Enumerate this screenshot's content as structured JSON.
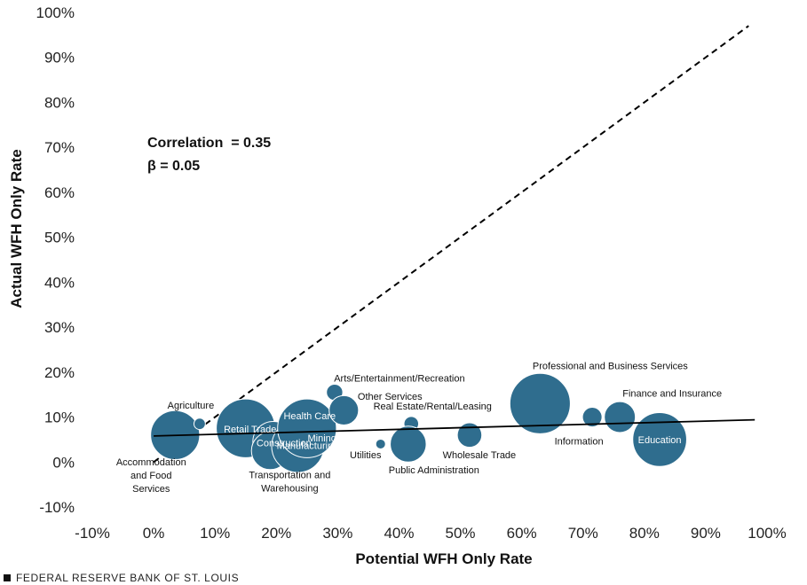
{
  "chart_data": {
    "type": "scatter",
    "title": "",
    "xlabel": "Potential WFH Only Rate",
    "ylabel": "Actual WFH Only Rate",
    "xlim": [
      -10,
      100
    ],
    "ylim": [
      -10,
      100
    ],
    "x_ticks": [
      "-10%",
      "0%",
      "10%",
      "20%",
      "30%",
      "40%",
      "50%",
      "60%",
      "70%",
      "80%",
      "90%",
      "100%"
    ],
    "y_ticks": [
      "-10%",
      "0%",
      "10%",
      "20%",
      "30%",
      "40%",
      "50%",
      "60%",
      "70%",
      "80%",
      "90%",
      "100%"
    ],
    "grid": false,
    "bubble_color": "#2f6d8e",
    "annotations": [
      "Correlation  = 0.35",
      "β = 0.05"
    ],
    "reference_line": {
      "style": "dashed",
      "from": [
        0,
        0
      ],
      "to": [
        97,
        97
      ]
    },
    "fit_line": {
      "style": "solid",
      "from": [
        0,
        5.8
      ],
      "to": [
        98,
        9.4
      ]
    },
    "points": [
      {
        "label": "Accommodation and Food Services",
        "x": 3.5,
        "y": 6,
        "size": 3.0
      },
      {
        "label": "Agriculture",
        "x": 7.5,
        "y": 8.5,
        "size": 0.7
      },
      {
        "label": "Retail Trade",
        "x": 15,
        "y": 7.5,
        "size": 3.6
      },
      {
        "label": "Construction",
        "x": 19.5,
        "y": 4.5,
        "size": 2.5
      },
      {
        "label": "Transportation and Warehousing",
        "x": 19,
        "y": 2.5,
        "size": 2.3
      },
      {
        "label": "Manufacturing",
        "x": 23.5,
        "y": 3.5,
        "size": 3.2
      },
      {
        "label": "Mining",
        "x": 26,
        "y": 6,
        "size": 2.0
      },
      {
        "label": "Health Care",
        "x": 25,
        "y": 7.5,
        "size": 3.6
      },
      {
        "label": "Arts/Entertainment/Recreation",
        "x": 29.5,
        "y": 15.5,
        "size": 1.0
      },
      {
        "label": "Other Services",
        "x": 31,
        "y": 11.5,
        "size": 1.8
      },
      {
        "label": "Utilities",
        "x": 37,
        "y": 4,
        "size": 0.6
      },
      {
        "label": "Real Estate/Rental/Leasing",
        "x": 42,
        "y": 8.5,
        "size": 0.9
      },
      {
        "label": "Public Administration",
        "x": 41.5,
        "y": 4,
        "size": 2.2
      },
      {
        "label": "Wholesale Trade",
        "x": 51.5,
        "y": 6,
        "size": 1.5
      },
      {
        "label": "Professional and Business Services",
        "x": 63,
        "y": 13,
        "size": 3.7
      },
      {
        "label": "Information",
        "x": 71.5,
        "y": 10,
        "size": 1.2
      },
      {
        "label": "Finance and Insurance",
        "x": 76,
        "y": 10,
        "size": 1.9
      },
      {
        "label": "Education",
        "x": 82.5,
        "y": 5,
        "size": 3.3
      }
    ]
  },
  "source": "FEDERAL RESERVE BANK OF ST. LOUIS"
}
